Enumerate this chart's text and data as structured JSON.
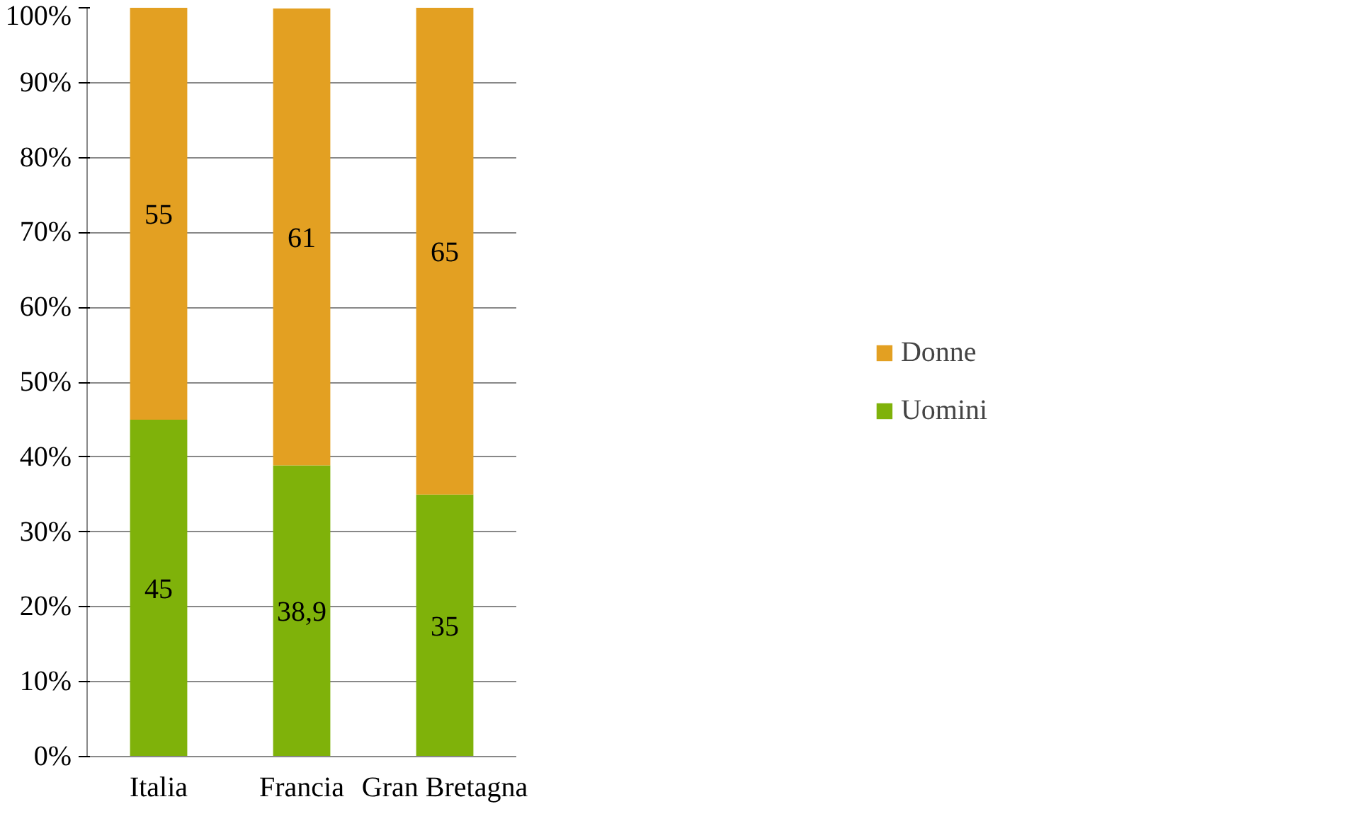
{
  "chart_data": {
    "type": "bar",
    "stacked": true,
    "categories": [
      "Italia",
      "Francia",
      "Gran Bretagna"
    ],
    "series": [
      {
        "name": "Uomini",
        "color": "#7fb20a",
        "values": [
          45,
          38.9,
          35
        ],
        "value_labels": [
          "45",
          "38,9",
          "35"
        ]
      },
      {
        "name": "Donne",
        "color": "#e3a022",
        "values": [
          55,
          61,
          65
        ],
        "value_labels": [
          "55",
          "61",
          "65"
        ]
      }
    ],
    "ylim": [
      0,
      100
    ],
    "yticks": [
      {
        "value": 0,
        "label": "0%"
      },
      {
        "value": 10,
        "label": "10%"
      },
      {
        "value": 20,
        "label": "20%"
      },
      {
        "value": 30,
        "label": "30%"
      },
      {
        "value": 40,
        "label": "40%"
      },
      {
        "value": 50,
        "label": "50%"
      },
      {
        "value": 60,
        "label": "60%"
      },
      {
        "value": 70,
        "label": "70%"
      },
      {
        "value": 80,
        "label": "80%"
      },
      {
        "value": 90,
        "label": "90%"
      },
      {
        "value": 100,
        "label": "100%"
      }
    ],
    "grid": "y",
    "legend": "right"
  }
}
